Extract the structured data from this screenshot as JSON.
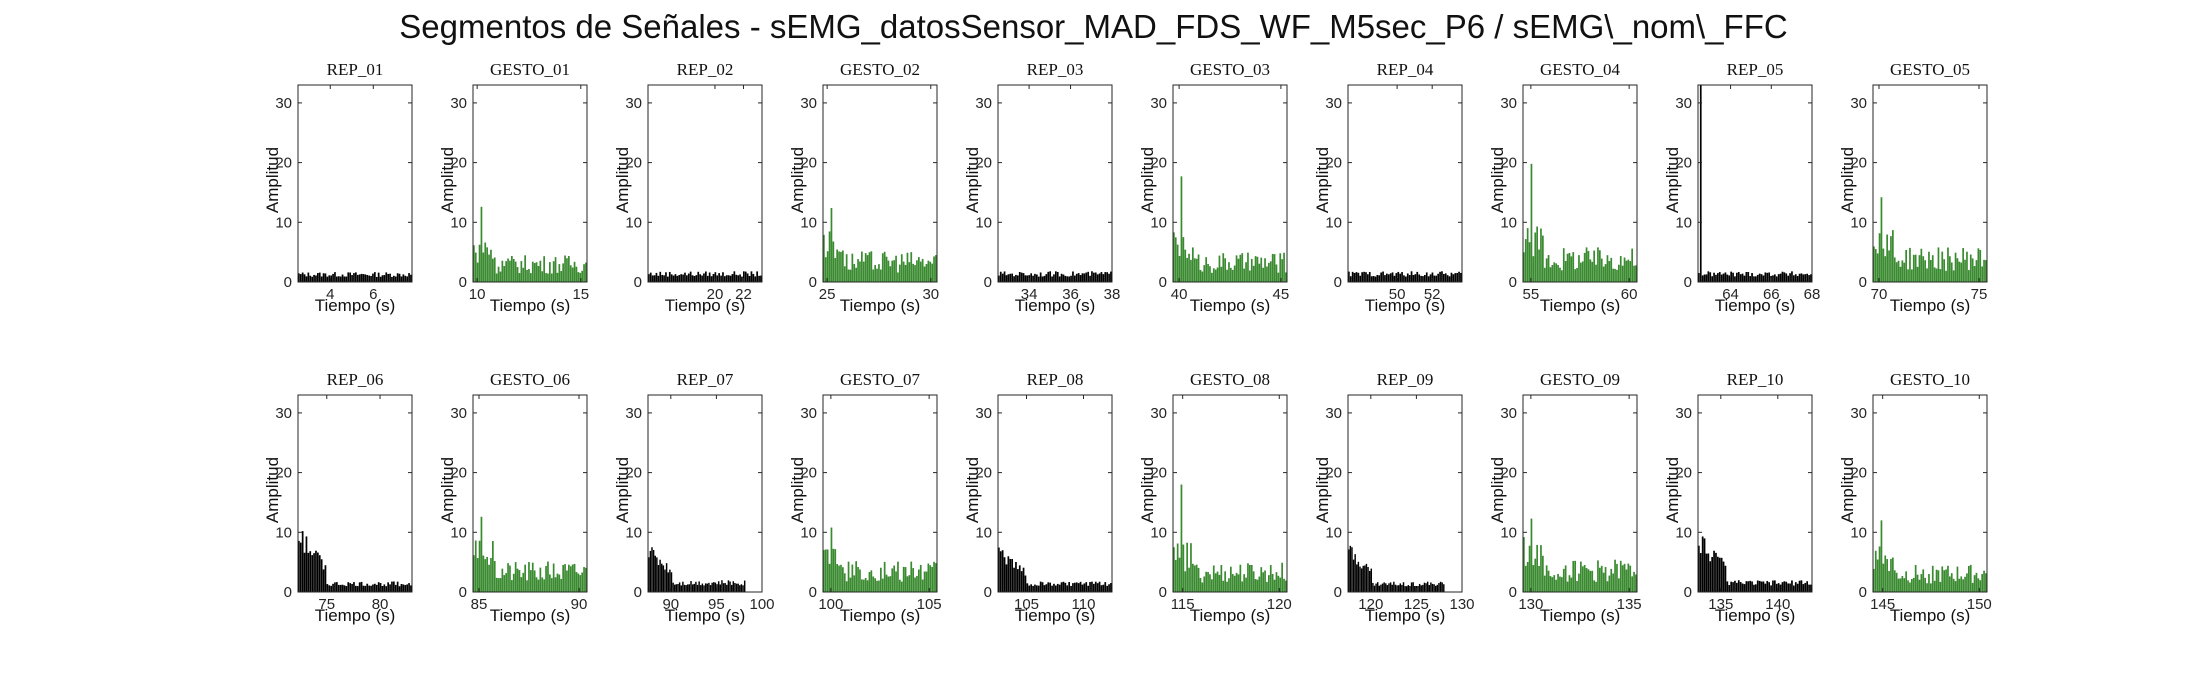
{
  "suptitle": "Segmentos de Señales - sEMG_datosSensor_MAD_FDS_WF_M5sec_P6 / sEMG\\_nom\\_FFC",
  "colors": {
    "rep": "#000000",
    "gesto": "#3a8a30",
    "axis": "#262626"
  },
  "chart_data": [
    {
      "type": "bar",
      "title": "REP_01",
      "xlabel": "Tiempo (s)",
      "ylabel": "Amplitud",
      "xlim": [
        2.5,
        7.8
      ],
      "ylim": [
        0,
        33
      ],
      "xticks": [
        4,
        6
      ],
      "yticks": [
        0,
        10,
        20,
        30
      ],
      "kind": "rep",
      "x_start": 2.5,
      "x_end": 7.8,
      "peak": 2.6,
      "base": 1.4,
      "grid": false
    },
    {
      "type": "bar",
      "title": "GESTO_01",
      "xlabel": "Tiempo (s)",
      "ylabel": "Amplitud",
      "xlim": [
        9.8,
        15.3
      ],
      "ylim": [
        0,
        33
      ],
      "xticks": [
        10,
        15
      ],
      "yticks": [
        0,
        10,
        20,
        30
      ],
      "kind": "gesto",
      "x_start": 9.8,
      "x_end": 15.3,
      "peak": 12.6,
      "base": 3.5,
      "grid": false
    },
    {
      "type": "bar",
      "title": "REP_02",
      "xlabel": "Tiempo (s)",
      "ylabel": "Amplitud",
      "xlim": [
        15.3,
        23.3
      ],
      "ylim": [
        0,
        33
      ],
      "xticks": [
        20,
        22
      ],
      "yticks": [
        0,
        10,
        20,
        30
      ],
      "kind": "rep",
      "x_start": 15.3,
      "x_end": 23.3,
      "peak": 2.7,
      "base": 1.5,
      "grid": false
    },
    {
      "type": "bar",
      "title": "GESTO_02",
      "xlabel": "Tiempo (s)",
      "ylabel": "Amplitud",
      "xlim": [
        24.8,
        30.3
      ],
      "ylim": [
        0,
        33
      ],
      "xticks": [
        25,
        30
      ],
      "yticks": [
        0,
        10,
        20,
        30
      ],
      "kind": "gesto",
      "x_start": 24.8,
      "x_end": 30.3,
      "peak": 12.4,
      "base": 4.0,
      "grid": false
    },
    {
      "type": "bar",
      "title": "REP_03",
      "xlabel": "Tiempo (s)",
      "ylabel": "Amplitud",
      "xlim": [
        32.5,
        38.0
      ],
      "ylim": [
        0,
        33
      ],
      "xticks": [
        34,
        36,
        38
      ],
      "yticks": [
        0,
        10,
        20,
        30
      ],
      "kind": "rep",
      "x_start": 32.5,
      "x_end": 38.0,
      "peak": 2.7,
      "base": 1.5,
      "grid": false
    },
    {
      "type": "bar",
      "title": "GESTO_03",
      "xlabel": "Tiempo (s)",
      "ylabel": "Amplitud",
      "xlim": [
        39.7,
        45.3
      ],
      "ylim": [
        0,
        33
      ],
      "xticks": [
        40,
        45
      ],
      "yticks": [
        0,
        10,
        20,
        30
      ],
      "kind": "gesto",
      "x_start": 39.7,
      "x_end": 45.3,
      "peak": 17.7,
      "base": 3.8,
      "grid": false
    },
    {
      "type": "bar",
      "title": "REP_04",
      "xlabel": "Tiempo (s)",
      "ylabel": "Amplitud",
      "xlim": [
        47.2,
        53.7
      ],
      "ylim": [
        0,
        33
      ],
      "xticks": [
        50,
        52
      ],
      "yticks": [
        0,
        10,
        20,
        30
      ],
      "kind": "rep",
      "x_start": 47.2,
      "x_end": 53.7,
      "peak": 2.7,
      "base": 1.5,
      "grid": false
    },
    {
      "type": "bar",
      "title": "GESTO_04",
      "xlabel": "Tiempo (s)",
      "ylabel": "Amplitud",
      "xlim": [
        54.6,
        60.4
      ],
      "ylim": [
        0,
        33
      ],
      "xticks": [
        55,
        60
      ],
      "yticks": [
        0,
        10,
        20,
        30
      ],
      "kind": "gesto",
      "x_start": 54.6,
      "x_end": 60.4,
      "peak": 19.8,
      "base": 4.5,
      "grid": false
    },
    {
      "type": "bar",
      "title": "REP_05",
      "xlabel": "Tiempo (s)",
      "ylabel": "Amplitud",
      "xlim": [
        62.4,
        68.0
      ],
      "ylim": [
        0,
        33
      ],
      "xticks": [
        64,
        66,
        68
      ],
      "yticks": [
        0,
        10,
        20,
        30
      ],
      "kind": "rep",
      "x_start": 62.4,
      "x_end": 68.0,
      "peak": 33.0,
      "base": 1.5,
      "grid": false
    },
    {
      "type": "bar",
      "title": "GESTO_05",
      "xlabel": "Tiempo (s)",
      "ylabel": "Amplitud",
      "xlim": [
        69.7,
        75.4
      ],
      "ylim": [
        0,
        33
      ],
      "xticks": [
        70,
        75
      ],
      "yticks": [
        0,
        10,
        20,
        30
      ],
      "kind": "gesto",
      "x_start": 69.7,
      "x_end": 75.4,
      "peak": 14.2,
      "base": 4.5,
      "grid": false
    },
    {
      "type": "bar",
      "title": "REP_06",
      "xlabel": "Tiempo (s)",
      "ylabel": "Amplitud",
      "xlim": [
        72.3,
        83.0
      ],
      "ylim": [
        0,
        33
      ],
      "xticks": [
        75,
        80
      ],
      "yticks": [
        0,
        10,
        20,
        30
      ],
      "kind": "rep_decay",
      "x_start": 72.3,
      "x_end": 83.0,
      "peak": 10.2,
      "base": 1.6,
      "grid": false
    },
    {
      "type": "bar",
      "title": "GESTO_06",
      "xlabel": "Tiempo (s)",
      "ylabel": "Amplitud",
      "xlim": [
        84.7,
        90.4
      ],
      "ylim": [
        0,
        33
      ],
      "xticks": [
        85,
        90
      ],
      "yticks": [
        0,
        10,
        20,
        30
      ],
      "kind": "gesto",
      "x_start": 84.7,
      "x_end": 90.4,
      "peak": 12.6,
      "base": 4.0,
      "grid": false
    },
    {
      "type": "bar",
      "title": "REP_07",
      "xlabel": "Tiempo (s)",
      "ylabel": "Amplitud",
      "xlim": [
        87.5,
        100.0
      ],
      "ylim": [
        0,
        33
      ],
      "xticks": [
        90,
        95,
        100
      ],
      "yticks": [
        0,
        10,
        20,
        30
      ],
      "kind": "rep_decay",
      "x_start": 87.5,
      "x_end": 98.2,
      "peak": 7.5,
      "base": 1.8,
      "grid": false
    },
    {
      "type": "bar",
      "title": "GESTO_07",
      "xlabel": "Tiempo (s)",
      "ylabel": "Amplitud",
      "xlim": [
        99.6,
        105.4
      ],
      "ylim": [
        0,
        33
      ],
      "xticks": [
        100,
        105
      ],
      "yticks": [
        0,
        10,
        20,
        30
      ],
      "kind": "gesto",
      "x_start": 99.6,
      "x_end": 105.4,
      "peak": 10.8,
      "base": 4.0,
      "grid": false
    },
    {
      "type": "bar",
      "title": "REP_08",
      "xlabel": "Tiempo (s)",
      "ylabel": "Amplitud",
      "xlim": [
        102.5,
        112.5
      ],
      "ylim": [
        0,
        33
      ],
      "xticks": [
        105,
        110
      ],
      "yticks": [
        0,
        10,
        20,
        30
      ],
      "kind": "rep_decay",
      "x_start": 102.5,
      "x_end": 112.5,
      "peak": 7.0,
      "base": 1.6,
      "grid": false
    },
    {
      "type": "bar",
      "title": "GESTO_08",
      "xlabel": "Tiempo (s)",
      "ylabel": "Amplitud",
      "xlim": [
        114.5,
        120.4
      ],
      "ylim": [
        0,
        33
      ],
      "xticks": [
        115,
        120
      ],
      "yticks": [
        0,
        10,
        20,
        30
      ],
      "kind": "gesto",
      "x_start": 114.5,
      "x_end": 120.4,
      "peak": 18.0,
      "base": 3.8,
      "grid": false
    },
    {
      "type": "bar",
      "title": "REP_09",
      "xlabel": "Tiempo (s)",
      "ylabel": "Amplitud",
      "xlim": [
        117.5,
        130.0
      ],
      "ylim": [
        0,
        33
      ],
      "xticks": [
        120,
        125,
        130
      ],
      "yticks": [
        0,
        10,
        20,
        30
      ],
      "kind": "rep_decay",
      "x_start": 117.5,
      "x_end": 128.1,
      "peak": 7.5,
      "base": 1.6,
      "grid": false
    },
    {
      "type": "bar",
      "title": "GESTO_09",
      "xlabel": "Tiempo (s)",
      "ylabel": "Amplitud",
      "xlim": [
        129.6,
        135.4
      ],
      "ylim": [
        0,
        33
      ],
      "xticks": [
        130,
        135
      ],
      "yticks": [
        0,
        10,
        20,
        30
      ],
      "kind": "gesto",
      "x_start": 129.6,
      "x_end": 135.4,
      "peak": 12.3,
      "base": 4.2,
      "grid": false
    },
    {
      "type": "bar",
      "title": "REP_10",
      "xlabel": "Tiempo (s)",
      "ylabel": "Amplitud",
      "xlim": [
        133.0,
        143.0
      ],
      "ylim": [
        0,
        33
      ],
      "xticks": [
        135,
        140
      ],
      "yticks": [
        0,
        10,
        20,
        30
      ],
      "kind": "rep_decay",
      "x_start": 133.0,
      "x_end": 143.0,
      "peak": 9.3,
      "base": 1.8,
      "grid": false
    },
    {
      "type": "bar",
      "title": "GESTO_10",
      "xlabel": "Tiempo (s)",
      "ylabel": "Amplitud",
      "xlim": [
        144.5,
        150.4
      ],
      "ylim": [
        0,
        33
      ],
      "xticks": [
        145,
        150
      ],
      "yticks": [
        0,
        10,
        20,
        30
      ],
      "kind": "gesto",
      "x_start": 144.5,
      "x_end": 150.4,
      "peak": 12.0,
      "base": 3.5,
      "grid": false
    }
  ]
}
